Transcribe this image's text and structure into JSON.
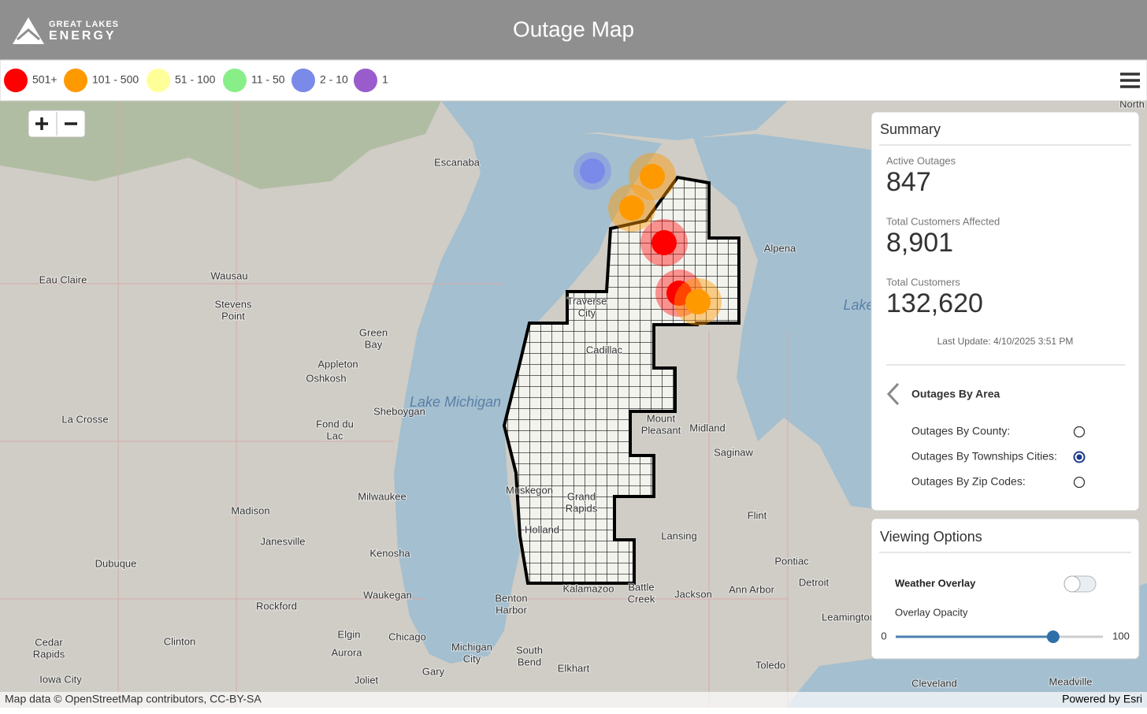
{
  "header": {
    "logo_line1": "GREAT LAKES",
    "logo_line2": "ENERGY",
    "title": "Outage Map"
  },
  "legend": [
    {
      "label": "501+",
      "color": "#ff0000"
    },
    {
      "label": "101 - 500",
      "color": "#ff9900"
    },
    {
      "label": "51 - 100",
      "color": "#ffff99"
    },
    {
      "label": "11 - 50",
      "color": "#88ee88"
    },
    {
      "label": "2 - 10",
      "color": "#7a8ae8"
    },
    {
      "label": "1",
      "color": "#9a5ccc"
    }
  ],
  "map_labels": [
    [
      "Escanaba"
    ],
    [
      "Alpena"
    ],
    [
      "Eau Claire"
    ],
    [
      "Wausau"
    ],
    [
      "Stevens",
      "Point"
    ],
    [
      "Traverse",
      "City"
    ],
    [
      "Green",
      "Bay"
    ],
    [
      "Appleton"
    ],
    [
      "Oshkosh"
    ],
    [
      "Cadillac"
    ],
    [
      "Lake Michigan"
    ],
    [
      "La Crosse"
    ],
    [
      "Sheboygan"
    ],
    [
      "Fond du",
      "Lac"
    ],
    [
      "Mount",
      "Pleasant"
    ],
    [
      "Midland"
    ],
    [
      "Saginaw"
    ],
    [
      "Muskegon"
    ],
    [
      "Grand",
      "Rapids"
    ],
    [
      "Holland"
    ],
    [
      "Milwaukee"
    ],
    [
      "Madison"
    ],
    [
      "Flint"
    ],
    [
      "Janesville"
    ],
    [
      "Lansing"
    ],
    [
      "Kenosha"
    ],
    [
      "Pontiac"
    ],
    [
      "Dubuque"
    ],
    [
      "Detroit"
    ],
    [
      "Battle",
      "Creek"
    ],
    [
      "Kalamazoo"
    ],
    [
      "Jackson"
    ],
    [
      "Ann Arbor"
    ],
    [
      "Waukegan"
    ],
    [
      "Rockford"
    ],
    [
      "Benton",
      "Harbor"
    ],
    [
      "Elgin"
    ],
    [
      "Chicago"
    ],
    [
      "Clinton"
    ],
    [
      "Cedar",
      "Rapids"
    ],
    [
      "Aurora"
    ],
    [
      "Michigan",
      "City"
    ],
    [
      "South",
      "Bend"
    ],
    [
      "Gary"
    ],
    [
      "Elkhart"
    ],
    [
      "Toledo"
    ],
    [
      "Iowa City"
    ],
    [
      "Joliet"
    ],
    [
      "Cleveland"
    ],
    [
      "Meadville"
    ],
    [
      "Leamington"
    ],
    [
      "North"
    ],
    [
      "Lake"
    ]
  ],
  "summary": {
    "title": "Summary",
    "stats": [
      {
        "label": "Active Outages",
        "value": "847"
      },
      {
        "label": "Total Customers Affected",
        "value": "8,901"
      },
      {
        "label": "Total Customers",
        "value": "132,620"
      }
    ],
    "last_update": "Last Update: 4/10/2025 3:51 PM",
    "area_heading": "Outages By Area",
    "options": [
      {
        "label": "Outages By County:",
        "selected": false
      },
      {
        "label": "Outages By Townships Cities:",
        "selected": true
      },
      {
        "label": "Outages By Zip Codes:",
        "selected": false
      }
    ]
  },
  "viewing_options": {
    "title": "Viewing Options",
    "weather_overlay": "Weather Overlay",
    "weather_on": false,
    "opacity_label": "Overlay Opacity",
    "opacity": {
      "min": 0,
      "max": 100,
      "value": 76
    }
  },
  "attribution": {
    "left": "Map data © OpenStreetMap contributors, CC-BY-SA",
    "right": "Powered by Esri"
  }
}
